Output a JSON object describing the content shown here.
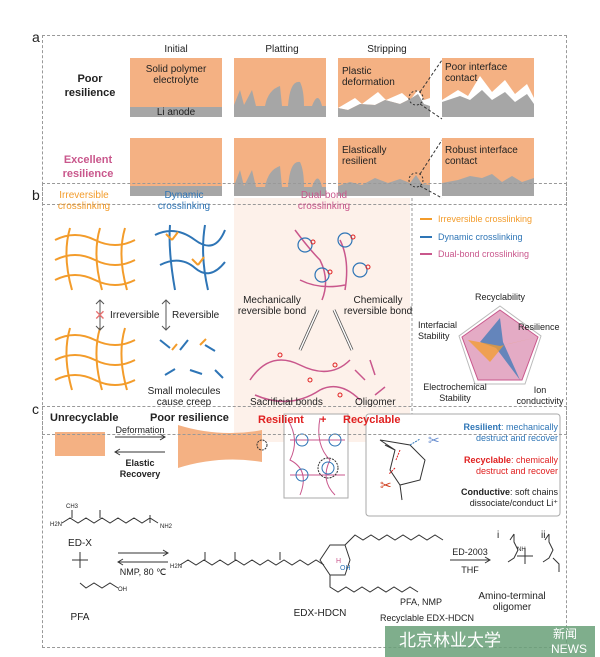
{
  "panel_a": {
    "label": "a",
    "columns": [
      "Initial",
      "Platting",
      "Stripping"
    ],
    "rows": [
      "Poor resilience",
      "Excellent resilience"
    ],
    "annotations": {
      "spe": "Solid polymer electrolyte",
      "anode": "Li anode",
      "plastic": "Plastic deformation",
      "poor_contact": "Poor interface contact",
      "elastic": "Elastically resilient",
      "robust_contact": "Robust interface contact"
    },
    "colors": {
      "electrolyte": "#f4b183",
      "anode": "#a6a6a6",
      "excellent": "#c9578c"
    }
  },
  "panel_b": {
    "label": "b",
    "irreversible_title": "Irreversible crosslinking",
    "dynamic_title": "Dynamic crosslinking",
    "dual_title": "Dual-bond crosslinking",
    "irreversible_arrow": "Irreversible",
    "reversible_arrow": "Reversible",
    "creep": "Small molecules cause creep",
    "unrecyclable": "Unrecyclable",
    "poor_resilience": "Poor resilience",
    "mech_bond": "Mechanically reversible bond",
    "chem_bond": "Chemically reversible bond",
    "sacrificial": "Sacrificial bonds",
    "oligomer": "Oligomer",
    "resilient": "Resilient",
    "plus": "+",
    "recyclable": "Recyclable",
    "legend": [
      "Irreversible crosslinking",
      "Dynamic crosslinking",
      "Dual-bond crosslinking"
    ],
    "radar_axes": [
      "Recyclability",
      "Resilience",
      "Ion conductivity",
      "Electrochemical Stability",
      "Interfacial Stability"
    ],
    "colors": {
      "irreversible": "#f39c2b",
      "dynamic": "#2e75b6",
      "dual": "#c9578c",
      "red": "#e02020"
    }
  },
  "panel_c": {
    "label": "c",
    "deformation": "Deformation",
    "elastic_recovery": "Elastic Recovery",
    "resilient_head": "Resilient",
    "resilient_text": ": mechanically destruct and recover",
    "recyclable_head": "Recyclable",
    "recyclable_text": ": chemically destruct and recover",
    "conductive_head": "Conductive",
    "conductive_text": ": soft chains dissociate/conduct Li⁺",
    "edx": "ED-X",
    "pfa": "PFA",
    "plus": "+",
    "conditions": "NMP, 80 ℃",
    "product": "EDX-HDCN",
    "reagent": "ED-2003",
    "solvent": "THF",
    "oligo_i": "i",
    "oligo_ii": "ii",
    "amino": "Amino-terminal oligomer",
    "pfa_nmp": "PFA, NMP",
    "recyclable_product": "Recyclable EDX-HDCN",
    "groups": {
      "ch3": "CH3",
      "nh2": "NH2",
      "h2n": "H2N",
      "o": "O",
      "oh": "OH",
      "nh": "NH",
      "n": "N",
      "h": "H"
    }
  },
  "watermark": {
    "school": "北京林业大学",
    "news_cn": "新闻",
    "news_en": "NEWS"
  }
}
